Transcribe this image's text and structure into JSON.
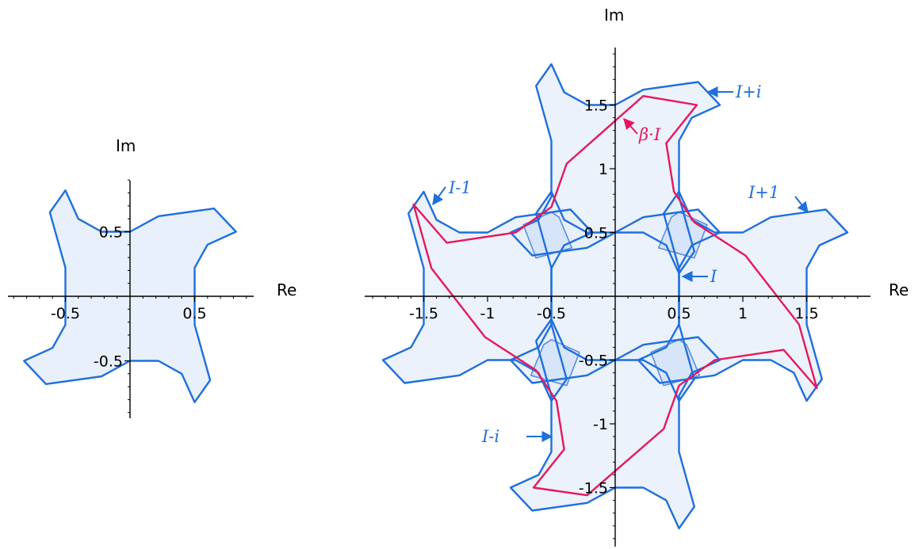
{
  "chart_data": [
    {
      "type": "diagram",
      "xlabel": "Re",
      "ylabel": "Im",
      "xlim": [
        -0.95,
        0.95
      ],
      "ylim": [
        -0.95,
        0.95
      ],
      "x_ticks": [
        {
          "value": -0.5,
          "label": "-0.5"
        },
        {
          "value": 0.5,
          "label": "0.5"
        }
      ],
      "y_ticks": [
        {
          "value": -0.5,
          "label": "-0.5"
        },
        {
          "value": 0.5,
          "label": "0.5"
        }
      ],
      "tile_polygon": [
        [
          0,
          0.5
        ],
        [
          0.22,
          0.62
        ],
        [
          0.65,
          0.68
        ],
        [
          0.82,
          0.5
        ],
        [
          0.6,
          0.4
        ],
        [
          0.5,
          0.22
        ],
        [
          0.5,
          0
        ],
        [
          0.5,
          -0.22
        ],
        [
          0.62,
          -0.65
        ],
        [
          0.5,
          -0.82
        ],
        [
          0.4,
          -0.6
        ],
        [
          0.22,
          -0.5
        ],
        [
          0,
          -0.5
        ],
        [
          -0.22,
          -0.62
        ],
        [
          -0.65,
          -0.68
        ],
        [
          -0.82,
          -0.5
        ],
        [
          -0.6,
          -0.4
        ],
        [
          -0.5,
          -0.22
        ],
        [
          -0.5,
          0
        ],
        [
          -0.5,
          0.22
        ],
        [
          -0.62,
          0.65
        ],
        [
          -0.5,
          0.82
        ],
        [
          -0.4,
          0.6
        ],
        [
          -0.22,
          0.5
        ]
      ],
      "colors": {
        "tile": "#1f6fde",
        "fill": "#e8f0fb"
      }
    },
    {
      "type": "diagram",
      "xlabel": "Re",
      "ylabel": "Im",
      "xlim": [
        -1.95,
        1.95
      ],
      "ylim": [
        -1.95,
        1.95
      ],
      "x_ticks": [
        {
          "value": -1.5,
          "label": "-1.5"
        },
        {
          "value": -1,
          "label": "-1"
        },
        {
          "value": -0.5,
          "label": "-0.5"
        },
        {
          "value": 0.5,
          "label": "0.5"
        },
        {
          "value": 1,
          "label": "1"
        },
        {
          "value": 1.5,
          "label": "1.5"
        }
      ],
      "y_ticks": [
        {
          "value": -1.5,
          "label": "-1.5"
        },
        {
          "value": -1,
          "label": "-1"
        },
        {
          "value": -0.5,
          "label": "-0.5"
        },
        {
          "value": 0.5,
          "label": "0.5"
        },
        {
          "value": 1,
          "label": "1"
        },
        {
          "value": 1.5,
          "label": "1.5"
        }
      ],
      "tiles": [
        {
          "label": "I",
          "shift": [
            0,
            0
          ]
        },
        {
          "label": "I+1",
          "shift": [
            1,
            0
          ]
        },
        {
          "label": "I-1",
          "shift": [
            -1,
            0
          ]
        },
        {
          "label": "I+i",
          "shift": [
            0,
            1
          ]
        },
        {
          "label": "I-i",
          "shift": [
            0,
            -1
          ]
        }
      ],
      "beta_polygon": {
        "label": "β·I",
        "points": [
          [
            0.22,
            1.57
          ],
          [
            0.64,
            1.5
          ],
          [
            0.4,
            1.2
          ],
          [
            0.46,
            0.82
          ],
          [
            0.62,
            0.58
          ],
          [
            1.02,
            0.32
          ],
          [
            1.44,
            -0.22
          ],
          [
            1.58,
            -0.72
          ],
          [
            1.32,
            -0.42
          ],
          [
            0.78,
            -0.5
          ],
          [
            0.5,
            -0.7
          ],
          [
            0.38,
            -1.04
          ],
          [
            -0.22,
            -1.56
          ],
          [
            -0.64,
            -1.5
          ],
          [
            -0.4,
            -1.2
          ],
          [
            -0.46,
            -0.82
          ],
          [
            -0.62,
            -0.58
          ],
          [
            -1.02,
            -0.32
          ],
          [
            -1.44,
            0.22
          ],
          [
            -1.58,
            0.72
          ],
          [
            -1.32,
            0.42
          ],
          [
            -0.78,
            0.5
          ],
          [
            -0.5,
            0.7
          ],
          [
            -0.38,
            1.04
          ]
        ]
      },
      "colors": {
        "tile": "#1f6fde",
        "fill": "#e8f0fb",
        "overlap": "#5a8fe0",
        "beta": "#e8175d"
      }
    }
  ]
}
